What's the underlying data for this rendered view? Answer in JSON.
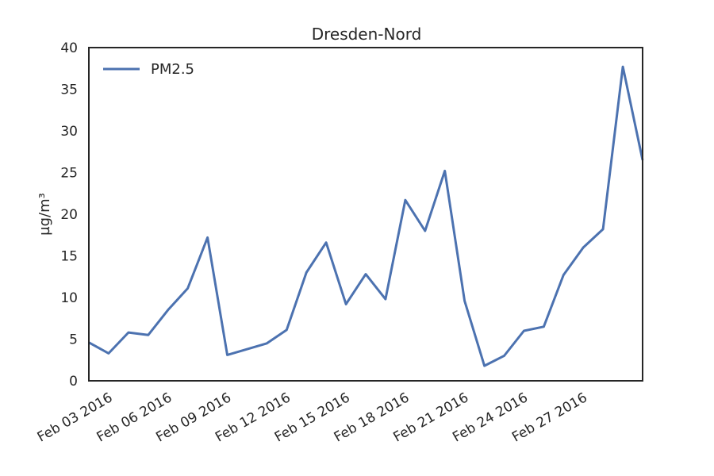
{
  "chart_data": {
    "type": "line",
    "title": "Dresden-Nord",
    "xlabel": "",
    "ylabel": "µg/m³",
    "ylim": [
      0,
      40
    ],
    "yticks": [
      "0",
      "5",
      "10",
      "15",
      "20",
      "25",
      "30",
      "35",
      "40"
    ],
    "xticks": [
      "Feb 03 2016",
      "Feb 06 2016",
      "Feb 09 2016",
      "Feb 12 2016",
      "Feb 15 2016",
      "Feb 18 2016",
      "Feb 21 2016",
      "Feb 24 2016",
      "Feb 27 2016"
    ],
    "xlim": [
      "2016-02-02",
      "2016-03-01"
    ],
    "grid": false,
    "legend_position": "top-left",
    "series": [
      {
        "name": "PM2.5",
        "color": "#4c72b0",
        "x": [
          "2016-02-02",
          "2016-02-03",
          "2016-02-04",
          "2016-02-05",
          "2016-02-06",
          "2016-02-07",
          "2016-02-08",
          "2016-02-09",
          "2016-02-11",
          "2016-02-12",
          "2016-02-13",
          "2016-02-14",
          "2016-02-15",
          "2016-02-16",
          "2016-02-17",
          "2016-02-18",
          "2016-02-19",
          "2016-02-20",
          "2016-02-21",
          "2016-02-22",
          "2016-02-23",
          "2016-02-24",
          "2016-02-25",
          "2016-02-26",
          "2016-02-27",
          "2016-02-28",
          "2016-02-29",
          "2016-03-01"
        ],
        "values": [
          4.6,
          3.3,
          5.8,
          5.5,
          8.5,
          11.1,
          17.2,
          3.1,
          4.5,
          6.1,
          13.0,
          16.6,
          9.2,
          12.8,
          9.8,
          21.7,
          18.0,
          25.2,
          9.6,
          1.8,
          3.0,
          6.0,
          6.5,
          12.7,
          16.0,
          18.2,
          37.7,
          26.5
        ]
      }
    ]
  }
}
